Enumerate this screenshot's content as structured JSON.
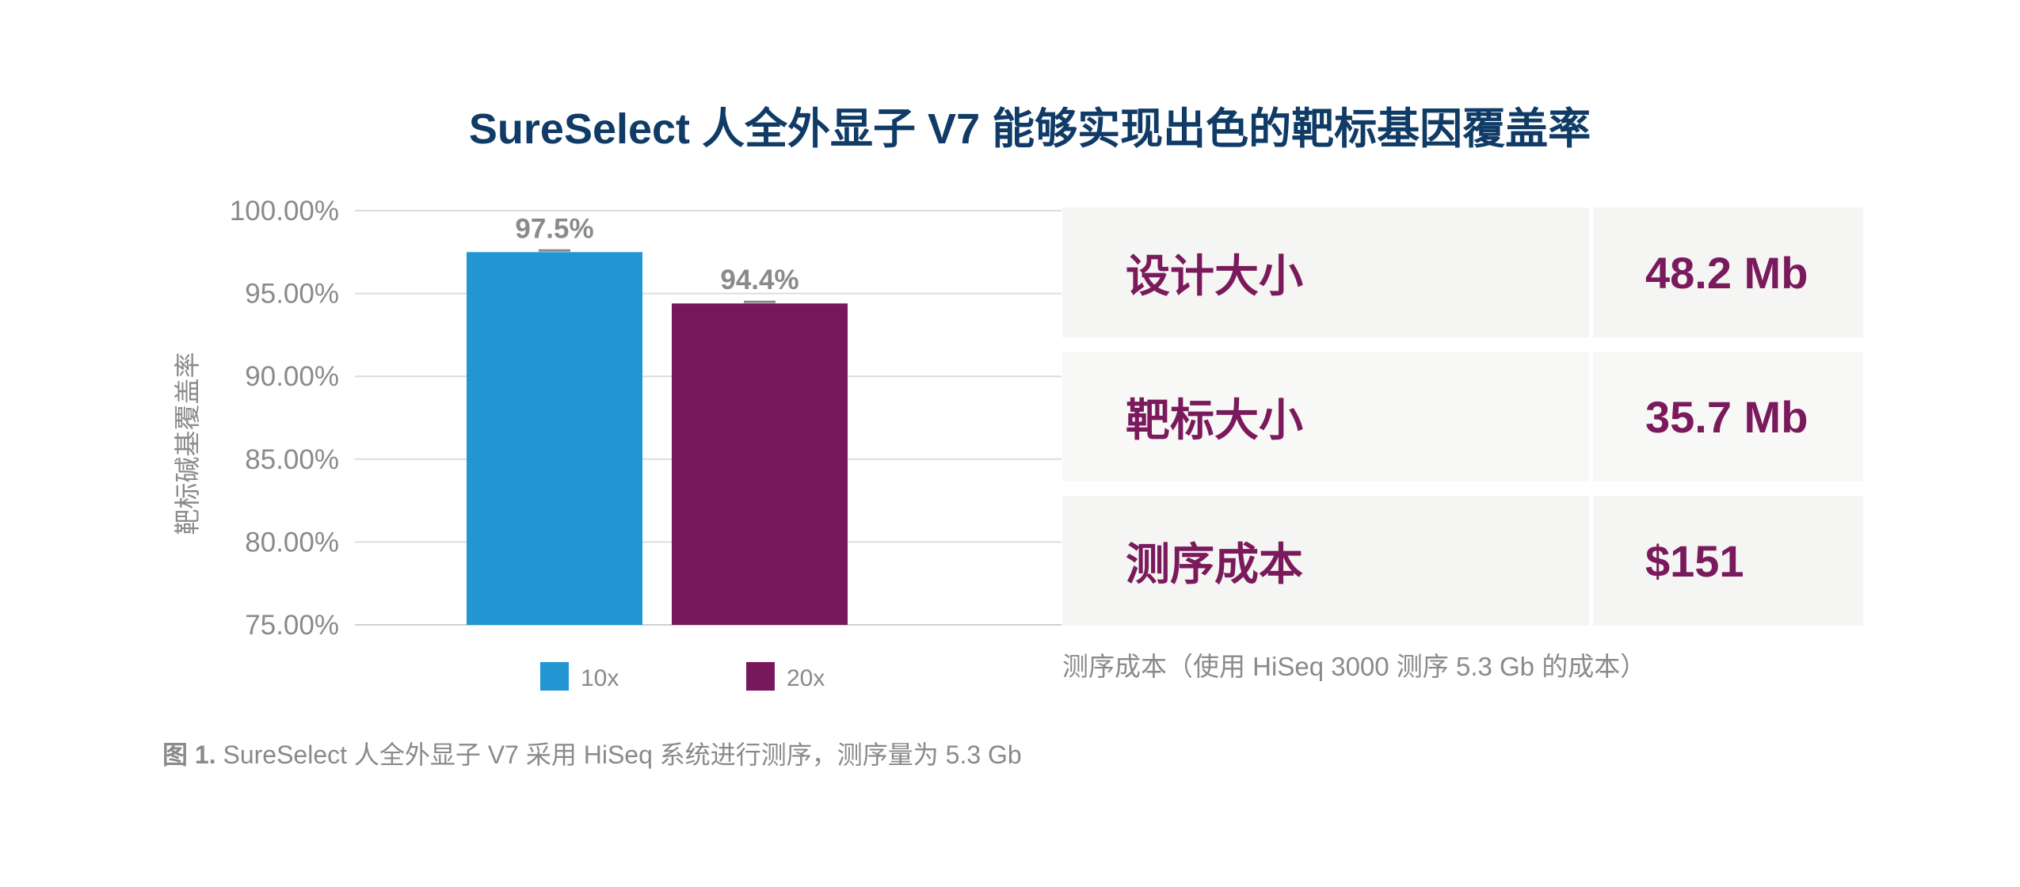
{
  "title": "SureSelect 人全外显子 V7 能够实现出色的靶标基因覆盖率",
  "chart_data": {
    "type": "bar",
    "categories": [
      "10x",
      "20x"
    ],
    "values": [
      97.5,
      94.4
    ],
    "data_labels": [
      "97.5%",
      "94.4%"
    ],
    "colors": [
      "#2196d3",
      "#77175c"
    ],
    "ylabel": "靶标碱基覆盖率",
    "ylim": [
      75,
      100
    ],
    "yticks": [
      100,
      95,
      90,
      85,
      80,
      75
    ],
    "ytick_labels": [
      "100.00%",
      "95.00%",
      "90.00%",
      "85.00%",
      "80.00%",
      "75.00%"
    ],
    "grid": true,
    "legend": [
      "10x",
      "20x"
    ],
    "legend_position": "bottom"
  },
  "stats": [
    {
      "label": "设计大小",
      "value": "48.2 Mb"
    },
    {
      "label": "靶标大小",
      "value": "35.7 Mb"
    },
    {
      "label": "测序成本",
      "value": "$151"
    }
  ],
  "stats_note": "测序成本（使用 HiSeq 3000 测序 5.3 Gb 的成本）",
  "caption": {
    "prefix": "图 1.",
    "text": "SureSelect 人全外显子 V7 采用 HiSeq 系统进行测序，测序量为 5.3 Gb"
  }
}
